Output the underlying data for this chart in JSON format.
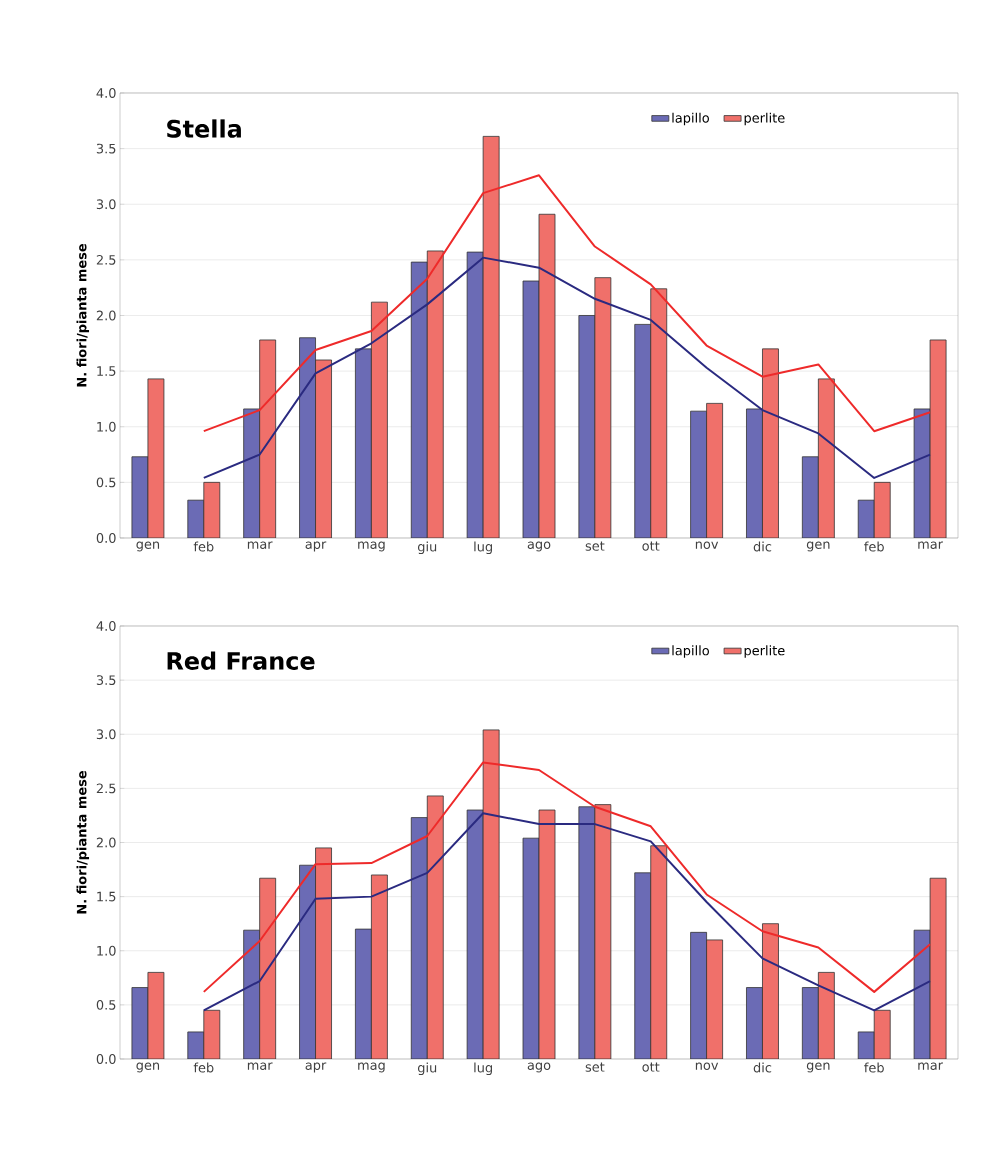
{
  "chart_data": [
    {
      "type": "bar",
      "title": "Stella",
      "ylabel": "N. fiori/pianta mese",
      "categories": [
        "gen",
        "feb",
        "mar",
        "apr",
        "mag",
        "giu",
        "lug",
        "ago",
        "set",
        "ott",
        "nov",
        "dic",
        "gen",
        "feb",
        "mar"
      ],
      "series": [
        {
          "name": "lapillo",
          "color": "#6b6bb5",
          "values": [
            0.73,
            0.34,
            1.16,
            1.8,
            1.7,
            2.48,
            2.57,
            2.31,
            2.0,
            1.92,
            1.14,
            1.16,
            0.73,
            0.34,
            1.16
          ]
        },
        {
          "name": "perlite",
          "color": "#f0706a",
          "values": [
            1.43,
            0.5,
            1.78,
            1.6,
            2.12,
            2.58,
            3.61,
            2.91,
            2.34,
            2.24,
            1.21,
            1.7,
            1.43,
            0.5,
            1.78
          ]
        },
        {
          "type": "line",
          "color": "#2a2a80",
          "values": [
            null,
            0.54,
            0.75,
            1.48,
            1.75,
            2.1,
            2.52,
            2.43,
            2.15,
            1.96,
            1.53,
            1.15,
            0.94,
            0.54,
            0.75
          ]
        },
        {
          "type": "line",
          "color": "#ee2a2a",
          "values": [
            null,
            0.96,
            1.15,
            1.69,
            1.86,
            2.33,
            3.1,
            3.26,
            2.62,
            2.28,
            1.73,
            1.45,
            1.56,
            0.96,
            1.13
          ]
        }
      ],
      "ylim": [
        0,
        4
      ],
      "yticks": [
        {
          "value": 0,
          "label": "0.0"
        },
        0.5,
        {
          "value": 1,
          "label": "1.0"
        },
        1.5,
        {
          "value": 2,
          "label": "2.0"
        },
        2.5,
        {
          "value": 3,
          "label": "3.0"
        },
        3.5,
        {
          "value": 4,
          "label": "4.0"
        }
      ],
      "grid": "y",
      "legend": "top right"
    },
    {
      "type": "bar",
      "title": "Red France",
      "ylabel": "N. fiori/pianta mese",
      "categories": [
        "gen",
        "feb",
        "mar",
        "apr",
        "mag",
        "giu",
        "lug",
        "ago",
        "set",
        "ott",
        "nov",
        "dic",
        "gen",
        "feb",
        "mar"
      ],
      "series": [
        {
          "name": "lapillo",
          "color": "#6b6bb5",
          "values": [
            0.66,
            0.25,
            1.19,
            1.79,
            1.2,
            2.23,
            2.3,
            2.04,
            2.33,
            1.72,
            1.17,
            0.66,
            0.66,
            0.25,
            1.19
          ]
        },
        {
          "name": "perlite",
          "color": "#f0706a",
          "values": [
            0.8,
            0.45,
            1.67,
            1.95,
            1.7,
            2.43,
            3.04,
            2.3,
            2.35,
            1.97,
            1.1,
            1.25,
            0.8,
            0.45,
            1.67
          ]
        },
        {
          "type": "line",
          "color": "#2a2a80",
          "values": [
            null,
            0.45,
            0.72,
            1.48,
            1.5,
            1.72,
            2.27,
            2.17,
            2.17,
            2.01,
            1.45,
            0.93,
            0.68,
            0.45,
            0.72
          ]
        },
        {
          "type": "line",
          "color": "#ee2a2a",
          "values": [
            null,
            0.62,
            1.09,
            1.8,
            1.81,
            2.06,
            2.74,
            2.67,
            2.33,
            2.15,
            1.52,
            1.18,
            1.03,
            0.62,
            1.06
          ]
        }
      ],
      "ylim": [
        0,
        4
      ],
      "yticks": [
        {
          "value": 0,
          "label": "0.0"
        },
        0.5,
        {
          "value": 1,
          "label": "1.0"
        },
        1.5,
        {
          "value": 2,
          "label": "2.0"
        },
        2.5,
        {
          "value": 3,
          "label": "3.0"
        },
        3.5,
        {
          "value": 4,
          "label": "4.0"
        }
      ],
      "grid": "y",
      "legend": "top right"
    }
  ]
}
